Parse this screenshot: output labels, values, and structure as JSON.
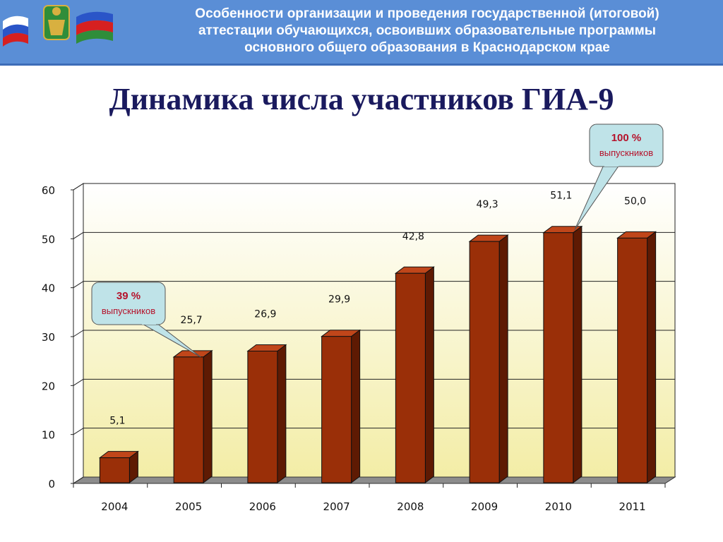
{
  "header": {
    "lines": [
      "Особенности организации и проведения государственной (итоговой)",
      "аттестации обучающихся, освоивших образовательные программы",
      "основного общего образования в Краснодарском крае"
    ]
  },
  "colors": {
    "header_bg": "#5a8ed6",
    "bar_front": "#9a2f08",
    "bar_side": "#5e1a03",
    "bar_top": "#c0461a",
    "callout_fill": "#bfe3e8",
    "callout_text": "#b5122b"
  },
  "logo_icon": "flags-and-coat-of-arms",
  "chart_data": {
    "type": "bar",
    "title": "Динамика числа участников ГИА-9",
    "categories": [
      "2004",
      "2005",
      "2006",
      "2007",
      "2008",
      "2009",
      "2010",
      "2011"
    ],
    "values": [
      5.1,
      25.7,
      26.9,
      29.9,
      42.8,
      49.3,
      51.1,
      50.0
    ],
    "value_labels": [
      "5,1",
      "25,7",
      "26,9",
      "29,9",
      "42,8",
      "49,3",
      "51,1",
      "50,0"
    ],
    "ylim": [
      0,
      60
    ],
    "yticks": [
      "0",
      "10",
      "20",
      "30",
      "40",
      "50",
      "60"
    ],
    "grid": true,
    "annotations": [
      {
        "category": "2005",
        "line1": "39 %",
        "line2": "выпускников"
      },
      {
        "category": "2010",
        "line1": "100 %",
        "line2": "выпускников"
      }
    ]
  }
}
